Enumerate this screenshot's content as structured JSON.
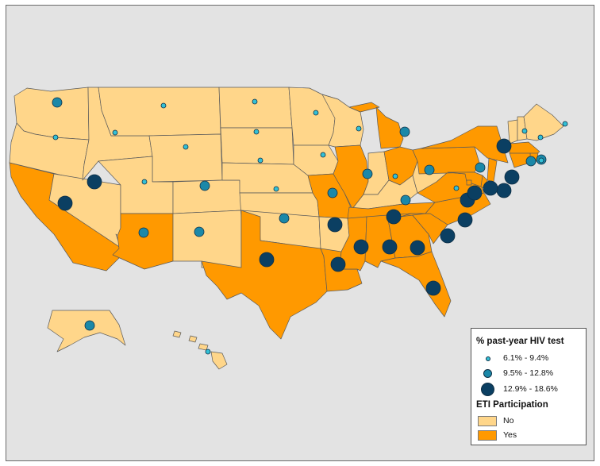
{
  "colors": {
    "background": "#e3e3e3",
    "no": "#ffd68a",
    "yes": "#ff9900",
    "dot_low": "#33c0d6",
    "dot_mid": "#1b88a8",
    "dot_high": "#0b3f62"
  },
  "legend": {
    "hiv_title": "% past-year HIV test",
    "hiv_classes": [
      {
        "label": "6.1% - 9.4%",
        "level": "low"
      },
      {
        "label": "9.5% - 12.8%",
        "level": "mid"
      },
      {
        "label": "12.9% - 18.6%",
        "level": "high"
      }
    ],
    "eti_title": "ETI Participation",
    "eti_classes": [
      {
        "label": "No",
        "value": "no"
      },
      {
        "label": "Yes",
        "value": "yes"
      }
    ]
  },
  "states": [
    {
      "id": "WA",
      "eti": "no",
      "hiv": "mid"
    },
    {
      "id": "OR",
      "eti": "no",
      "hiv": "low"
    },
    {
      "id": "CA",
      "eti": "yes",
      "hiv": "high"
    },
    {
      "id": "NV",
      "eti": "no",
      "hiv": "high"
    },
    {
      "id": "ID",
      "eti": "no",
      "hiv": "low"
    },
    {
      "id": "MT",
      "eti": "no",
      "hiv": "low"
    },
    {
      "id": "WY",
      "eti": "no",
      "hiv": "low"
    },
    {
      "id": "UT",
      "eti": "no",
      "hiv": "low"
    },
    {
      "id": "AZ",
      "eti": "yes",
      "hiv": "mid"
    },
    {
      "id": "CO",
      "eti": "no",
      "hiv": "mid"
    },
    {
      "id": "NM",
      "eti": "no",
      "hiv": "mid"
    },
    {
      "id": "ND",
      "eti": "no",
      "hiv": "low"
    },
    {
      "id": "SD",
      "eti": "no",
      "hiv": "low"
    },
    {
      "id": "NE",
      "eti": "no",
      "hiv": "low"
    },
    {
      "id": "KS",
      "eti": "no",
      "hiv": "low"
    },
    {
      "id": "OK",
      "eti": "no",
      "hiv": "mid"
    },
    {
      "id": "TX",
      "eti": "yes",
      "hiv": "high"
    },
    {
      "id": "MN",
      "eti": "no",
      "hiv": "low"
    },
    {
      "id": "IA",
      "eti": "no",
      "hiv": "low"
    },
    {
      "id": "MO",
      "eti": "yes",
      "hiv": "mid"
    },
    {
      "id": "AR",
      "eti": "no",
      "hiv": "high"
    },
    {
      "id": "LA",
      "eti": "yes",
      "hiv": "high"
    },
    {
      "id": "WI",
      "eti": "no",
      "hiv": "low"
    },
    {
      "id": "IL",
      "eti": "yes",
      "hiv": "mid"
    },
    {
      "id": "MI",
      "eti": "yes",
      "hiv": "mid"
    },
    {
      "id": "IN",
      "eti": "no",
      "hiv": "low"
    },
    {
      "id": "OH",
      "eti": "yes",
      "hiv": "mid"
    },
    {
      "id": "KY",
      "eti": "no",
      "hiv": "mid"
    },
    {
      "id": "TN",
      "eti": "yes",
      "hiv": "high"
    },
    {
      "id": "MS",
      "eti": "yes",
      "hiv": "high"
    },
    {
      "id": "AL",
      "eti": "yes",
      "hiv": "high"
    },
    {
      "id": "GA",
      "eti": "yes",
      "hiv": "high"
    },
    {
      "id": "FL",
      "eti": "yes",
      "hiv": "high"
    },
    {
      "id": "SC",
      "eti": "yes",
      "hiv": "high"
    },
    {
      "id": "NC",
      "eti": "yes",
      "hiv": "high"
    },
    {
      "id": "VA",
      "eti": "yes",
      "hiv": "high"
    },
    {
      "id": "WV",
      "eti": "no",
      "hiv": "low"
    },
    {
      "id": "PA",
      "eti": "yes",
      "hiv": "mid"
    },
    {
      "id": "NY",
      "eti": "yes",
      "hiv": "high"
    },
    {
      "id": "VT",
      "eti": "no",
      "hiv": "low"
    },
    {
      "id": "NH",
      "eti": "no",
      "hiv": "low"
    },
    {
      "id": "ME",
      "eti": "no",
      "hiv": "low"
    },
    {
      "id": "MA",
      "eti": "yes",
      "hiv": "mid"
    },
    {
      "id": "RI",
      "eti": "yes",
      "hiv": "low"
    },
    {
      "id": "CT",
      "eti": "yes",
      "hiv": "mid"
    },
    {
      "id": "NJ",
      "eti": "yes",
      "hiv": "high"
    },
    {
      "id": "DE",
      "eti": "yes",
      "hiv": "high"
    },
    {
      "id": "MD",
      "eti": "yes",
      "hiv": "high"
    },
    {
      "id": "DC",
      "eti": "yes",
      "hiv": "high"
    },
    {
      "id": "AK",
      "eti": "no",
      "hiv": "mid"
    },
    {
      "id": "HI",
      "eti": "no",
      "hiv": "low"
    }
  ]
}
